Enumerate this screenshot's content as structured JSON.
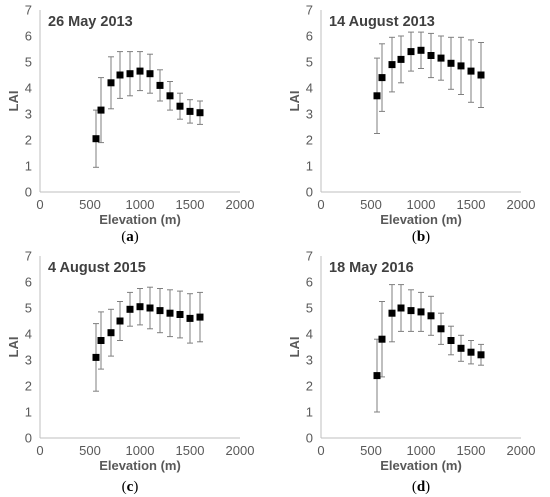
{
  "chart_data": [
    {
      "type": "scatter",
      "title": "26 May 2013",
      "caption": "a",
      "xlabel": "Elevation (m)",
      "ylabel": "LAI",
      "xlim": [
        0,
        2000
      ],
      "ylim": [
        0,
        7
      ],
      "xticks": [
        0,
        500,
        1000,
        1500,
        2000
      ],
      "yticks": [
        0,
        1,
        2,
        3,
        4,
        5,
        6,
        7
      ],
      "x": [
        560,
        610,
        710,
        800,
        900,
        1000,
        1100,
        1200,
        1300,
        1400,
        1500,
        1600
      ],
      "y": [
        2.05,
        3.15,
        4.2,
        4.5,
        4.55,
        4.65,
        4.55,
        4.1,
        3.7,
        3.3,
        3.1,
        3.05
      ],
      "error": [
        1.1,
        1.25,
        1.0,
        0.9,
        0.85,
        0.75,
        0.75,
        0.6,
        0.55,
        0.5,
        0.45,
        0.45
      ]
    },
    {
      "type": "scatter",
      "title": "14 August 2013",
      "caption": "b",
      "xlabel": "Elevation (m)",
      "ylabel": "LAI",
      "xlim": [
        0,
        2000
      ],
      "ylim": [
        0,
        7
      ],
      "xticks": [
        0,
        500,
        1000,
        1500,
        2000
      ],
      "yticks": [
        0,
        1,
        2,
        3,
        4,
        5,
        6,
        7
      ],
      "x": [
        560,
        610,
        710,
        800,
        900,
        1000,
        1100,
        1200,
        1300,
        1400,
        1500,
        1600
      ],
      "y": [
        3.7,
        4.4,
        4.9,
        5.1,
        5.4,
        5.45,
        5.25,
        5.15,
        4.95,
        4.85,
        4.65,
        4.5
      ],
      "error": [
        1.45,
        1.3,
        1.05,
        0.9,
        0.75,
        0.7,
        0.85,
        0.85,
        1.0,
        1.1,
        1.2,
        1.25
      ]
    },
    {
      "type": "scatter",
      "title": "4 August 2015",
      "caption": "c",
      "xlabel": "Elevation (m)",
      "ylabel": "LAI",
      "xlim": [
        0,
        2000
      ],
      "ylim": [
        0,
        7
      ],
      "xticks": [
        0,
        500,
        1000,
        1500,
        2000
      ],
      "yticks": [
        0,
        1,
        2,
        3,
        4,
        5,
        6,
        7
      ],
      "x": [
        560,
        610,
        710,
        800,
        900,
        1000,
        1100,
        1200,
        1300,
        1400,
        1500,
        1600
      ],
      "y": [
        3.1,
        3.75,
        4.05,
        4.5,
        4.95,
        5.05,
        5.0,
        4.9,
        4.8,
        4.75,
        4.6,
        4.65
      ],
      "error": [
        1.3,
        1.1,
        0.9,
        0.75,
        0.65,
        0.7,
        0.8,
        0.85,
        0.9,
        0.9,
        0.95,
        0.95
      ]
    },
    {
      "type": "scatter",
      "title": "18 May 2016",
      "caption": "d",
      "xlabel": "Elevation (m)",
      "ylabel": "LAI",
      "xlim": [
        0,
        2000
      ],
      "ylim": [
        0,
        7
      ],
      "xticks": [
        0,
        500,
        1000,
        1500,
        2000
      ],
      "yticks": [
        0,
        1,
        2,
        3,
        4,
        5,
        6,
        7
      ],
      "x": [
        560,
        610,
        710,
        800,
        900,
        1000,
        1100,
        1200,
        1300,
        1400,
        1500,
        1600
      ],
      "y": [
        2.4,
        3.8,
        4.8,
        5.0,
        4.9,
        4.85,
        4.7,
        4.2,
        3.75,
        3.45,
        3.3,
        3.2
      ],
      "error": [
        1.4,
        1.45,
        1.1,
        0.9,
        0.8,
        0.75,
        0.75,
        0.6,
        0.55,
        0.5,
        0.45,
        0.4
      ]
    }
  ]
}
